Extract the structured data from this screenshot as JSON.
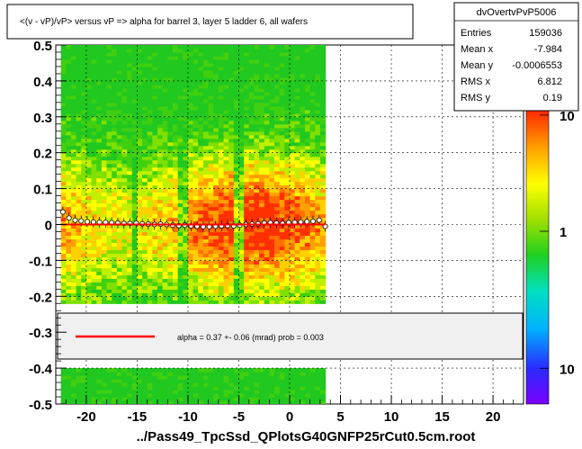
{
  "canvas": {
    "title": "<(v - vP)/vP> versus   vP => alpha for barrel 3, layer 5 ladder 6, all wafers",
    "footer": "../Pass49_TpcSsd_QPlotsG40GNFP25rCut0.5cm.root"
  },
  "stats_box": {
    "name": "dvOvertvPvP5006",
    "rows": [
      {
        "label": "Entries",
        "value": "159036"
      },
      {
        "label": "Mean x",
        "value": "-7.984"
      },
      {
        "label": "Mean y",
        "value": "-0.0006553"
      },
      {
        "label": "RMS x",
        "value": "6.812"
      },
      {
        "label": "RMS y",
        "value": "0.19"
      }
    ]
  },
  "fit_legend": {
    "text": "alpha =    0.37 +-  0.06 (mrad) prob = 0.003",
    "line_color": "#ff0000"
  },
  "chart_data": {
    "type": "heatmap",
    "title": "<(v - vP)/vP> versus   vP => alpha for barrel 3, layer 5 ladder 6, all wafers",
    "xlabel": "",
    "ylabel": "",
    "xlim": [
      -23,
      23
    ],
    "ylim": [
      -0.5,
      0.5
    ],
    "x_ticks": [
      -20,
      -15,
      -10,
      -5,
      0,
      5,
      10,
      15,
      20
    ],
    "y_ticks": [
      -0.5,
      -0.4,
      -0.3,
      -0.2,
      -0.1,
      0,
      0.1,
      0.2,
      0.3,
      0.4,
      0.5
    ],
    "x_tick_labels": [
      "-20",
      "-15",
      "-10",
      "-5",
      "0",
      "5",
      "10",
      "15",
      "20"
    ],
    "y_tick_labels": [
      "-0.5",
      "-0.4",
      "-0.3",
      "-0.2",
      "-0.1",
      "0",
      "0.1",
      "0.2",
      "0.3",
      "0.4",
      "0.5"
    ],
    "grid": true,
    "z_scale": "log",
    "z_tick_labels": [
      "10",
      "1",
      "10"
    ],
    "z_tick_fractions": [
      0.03,
      0.42,
      0.88
    ],
    "populated_x_range": [
      -22.5,
      3.5
    ],
    "gap_x_centers": [
      -15.3,
      -10.4,
      -5.0
    ],
    "profile": {
      "x": [
        -22.3,
        -21.7,
        -21.1,
        -20.5,
        -19.9,
        -19.3,
        -18.7,
        -18.1,
        -17.5,
        -16.9,
        -16.3,
        -15.7,
        -15.1,
        -14.5,
        -13.9,
        -13.3,
        -12.7,
        -12.1,
        -11.5,
        -10.9,
        -10.3,
        -9.7,
        -9.1,
        -8.5,
        -7.9,
        -7.3,
        -6.7,
        -6.1,
        -5.5,
        -4.9,
        -4.3,
        -3.7,
        -3.1,
        -2.5,
        -1.9,
        -1.3,
        -0.7,
        -0.1,
        0.5,
        1.1,
        1.7,
        2.3,
        2.9,
        3.5
      ],
      "y": [
        0.035,
        0.018,
        0.012,
        0.01,
        0.008,
        0.007,
        0.006,
        0.006,
        0.005,
        0.004,
        0.003,
        0.003,
        0.004,
        0.002,
        0.001,
        0.0,
        0.001,
        0.0,
        -0.002,
        -0.003,
        -0.002,
        -0.004,
        -0.005,
        -0.006,
        -0.006,
        -0.005,
        -0.004,
        -0.003,
        -0.004,
        -0.002,
        0.0,
        0.001,
        0.002,
        0.004,
        0.005,
        0.004,
        0.003,
        0.005,
        0.006,
        0.007,
        0.008,
        0.009,
        0.012,
        -0.005
      ]
    },
    "fit_line": {
      "x": [
        -22.5,
        3.5
      ],
      "y": [
        0.0,
        0.0
      ],
      "color": "#ff0000"
    }
  }
}
